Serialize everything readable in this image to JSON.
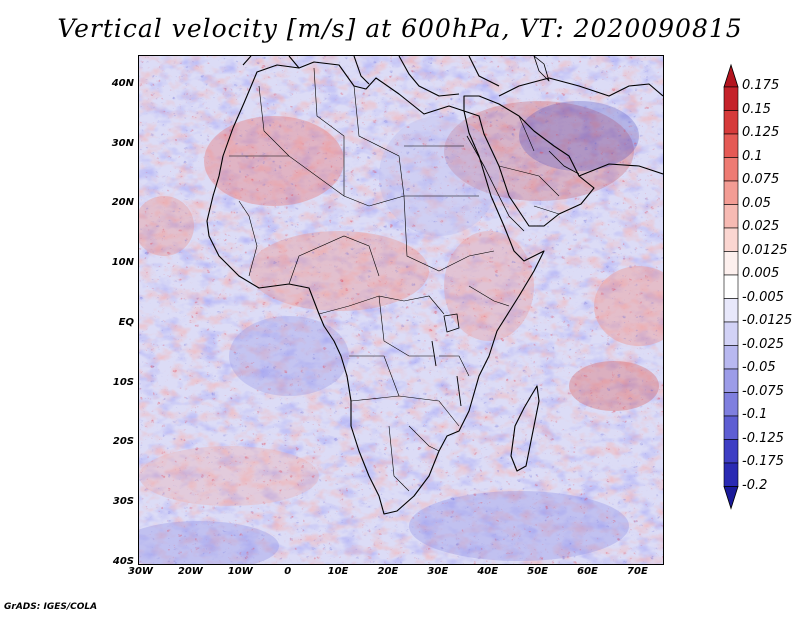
{
  "title": "Vertical velocity [m/s] at 600hPa, VT: 2020090815",
  "credit": "GrADS: IGES/COLA",
  "map": {
    "projection": "latlon",
    "lon_range": [
      -30,
      75
    ],
    "lat_range": [
      -40,
      45
    ],
    "lon_ticks": [
      "30W",
      "20W",
      "10W",
      "0",
      "10E",
      "20E",
      "30E",
      "40E",
      "50E",
      "60E",
      "70E"
    ],
    "lat_ticks": [
      "40N",
      "30N",
      "20N",
      "10N",
      "EQ",
      "10S",
      "20S",
      "30S",
      "40S"
    ],
    "field": "vertical velocity",
    "level": "600hPa",
    "valid_time": "2020090815",
    "units": "m/s"
  },
  "colorbar": {
    "labels": [
      "0.175",
      "0.15",
      "0.125",
      "0.1",
      "0.075",
      "0.05",
      "0.025",
      "0.0125",
      "0.005",
      "-0.005",
      "-0.0125",
      "-0.025",
      "-0.05",
      "-0.075",
      "-0.1",
      "-0.125",
      "-0.175",
      "-0.2"
    ],
    "colors": [
      "#b3141e",
      "#c5222a",
      "#d63a3a",
      "#e55a55",
      "#ee7b73",
      "#f39c94",
      "#f7bab3",
      "#fbd6d1",
      "#fdf0ee",
      "#ffffff",
      "#e8e8fb",
      "#d2d2f6",
      "#b8b8f0",
      "#9c9ce8",
      "#7f7fdf",
      "#5e5ed3",
      "#3e3ec4",
      "#2a2ab3",
      "#1a1a9a"
    ]
  }
}
